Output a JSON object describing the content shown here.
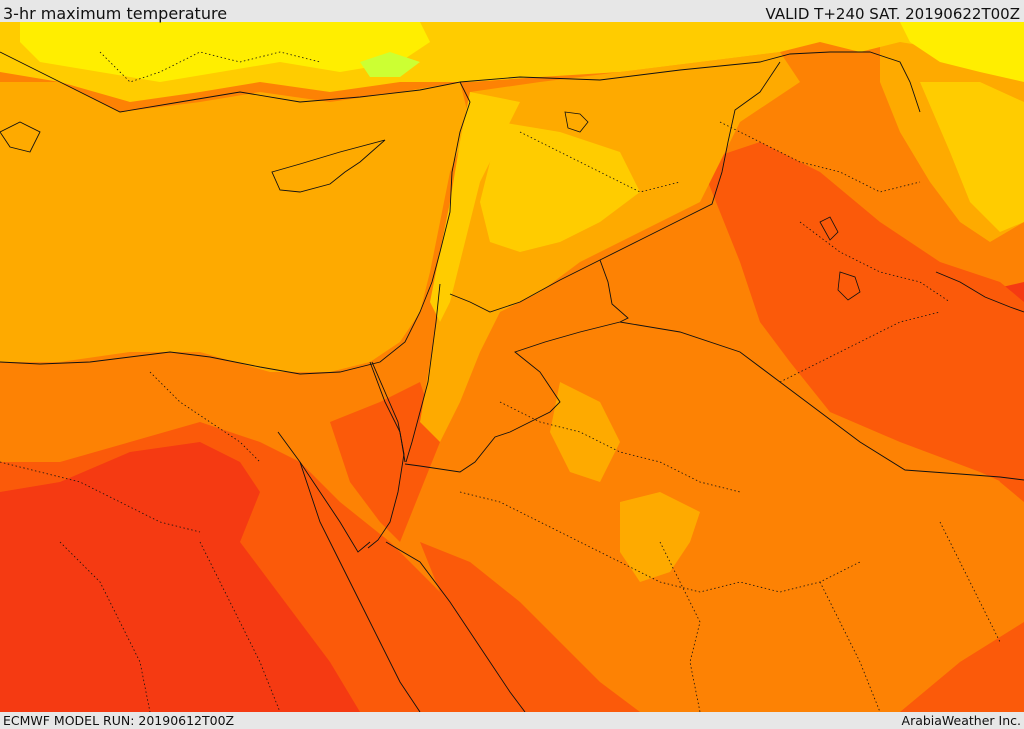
{
  "header": {
    "title": "3-hr maximum temperature",
    "valid": "VALID T+240 SAT. 20190622T00Z"
  },
  "footer": {
    "model_run": "ECMWF MODEL RUN: 20190612T00Z",
    "credit": "ArabiaWeather Inc."
  },
  "palette": {
    "hot_red": "#f53a12",
    "red_orange": "#fb5a0a",
    "orange": "#fd8204",
    "amber": "#feaa00",
    "yellow_orange": "#ffcc00",
    "yellow": "#ffee00",
    "pale_yellow": "#ffff33",
    "green_tint": "#ccff33",
    "sea": "#feaa00",
    "border": "#111111"
  }
}
